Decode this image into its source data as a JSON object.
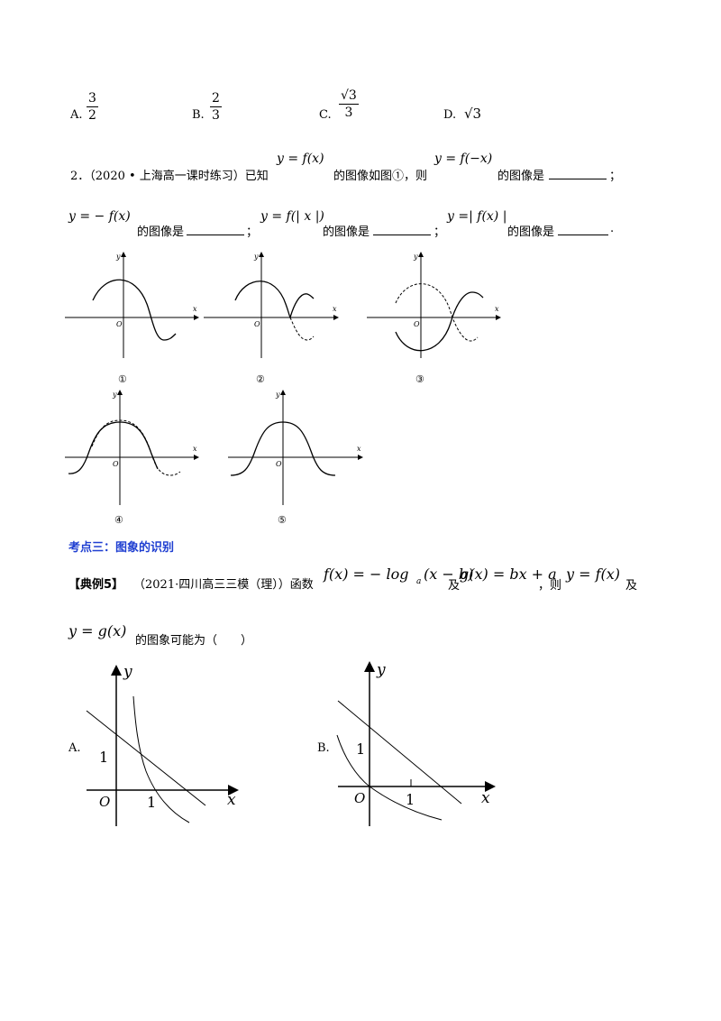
{
  "q1_options": {
    "a_label": "A.",
    "a_num": "3",
    "a_den": "2",
    "b_label": "B.",
    "b_num": "2",
    "b_den": "3",
    "c_label": "C.",
    "c_num": "√3",
    "c_den": "3",
    "d_label": "D.",
    "d_val": "√3"
  },
  "q2": {
    "prefix": "2．（2020 • 上海高一课时练习）已知",
    "expr1": "y = f(x)",
    "text1": "的图像如图①，则",
    "expr2": "y = f(−x)",
    "text2": "的图像是",
    "sep": "；",
    "expr3": "y = − f(x)",
    "text3": "的图像是",
    "expr4": "y = f(| x |)",
    "text4": "的图像是",
    "expr5": "y =| f(x) |",
    "text5": "的图像是",
    "end": "."
  },
  "graphs": {
    "x_label": "x",
    "y_label": "y",
    "origin": "O",
    "captions": [
      "①",
      "②",
      "③",
      "④",
      "⑤"
    ]
  },
  "section_heading": "考点三：图象的识别",
  "example5": {
    "tag": "【典例5】",
    "source": "（2021·四川高三三模（理））函数",
    "f_expr": "f(x) = − log",
    "f_sub": "a",
    "f_arg": "(x − b)",
    "and1": "及",
    "g_expr": "g(x) = bx + a",
    "then": "，则",
    "y_f": "y = f(x)",
    "and2": "及",
    "y_g": "y = g(x)",
    "question": "的图象可能为（　　）"
  },
  "choices": {
    "a_label": "A.",
    "b_label": "B.",
    "x_label": "x",
    "y_label": "y",
    "origin": "O",
    "one": "1"
  }
}
